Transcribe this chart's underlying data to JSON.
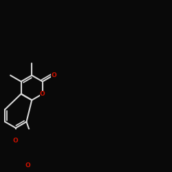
{
  "bg": "#090909",
  "bc": "#d8d8d8",
  "oc": "#cc1100",
  "lw": 1.5,
  "dbl_off": 0.0038,
  "dbl_trim": 0.12,
  "r": 0.072,
  "figsize": [
    2.5,
    2.5
  ],
  "dpi": 100,
  "fs": 6.5,
  "xlim": [
    0.0,
    1.0
  ],
  "ylim": [
    0.28,
    0.78
  ]
}
